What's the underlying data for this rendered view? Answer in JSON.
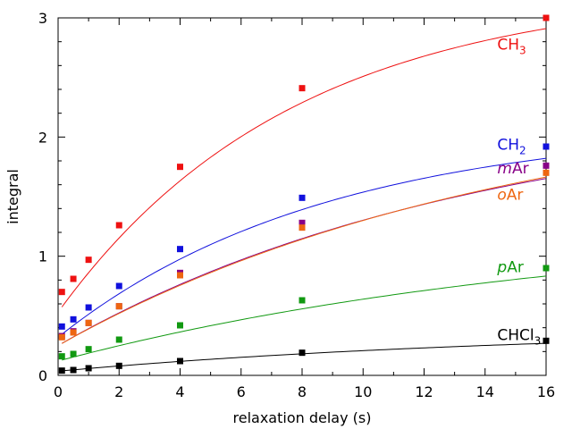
{
  "chart_data": {
    "type": "scatter",
    "title": "",
    "xlabel": "relaxation delay (s)",
    "ylabel": "integral",
    "xlim": [
      0,
      16
    ],
    "ylim": [
      0,
      3
    ],
    "x_ticks": [
      "0",
      "2",
      "4",
      "6",
      "8",
      "10",
      "12",
      "14",
      "16"
    ],
    "y_ticks": [
      "0",
      "1",
      "2",
      "3"
    ],
    "x": [
      0.125,
      0.5,
      1,
      2,
      4,
      8,
      16
    ],
    "series": [
      {
        "name": "CH3",
        "label_main": "CH",
        "label_sub": "3",
        "italic": false,
        "color": "#ee1111",
        "values": [
          0.7,
          0.81,
          0.97,
          1.26,
          1.75,
          2.41,
          3.0
        ],
        "fit": [
          0.53,
          3.25,
          0.13
        ]
      },
      {
        "name": "CH2",
        "label_main": "CH",
        "label_sub": "2",
        "italic": false,
        "color": "#1111dd",
        "values": [
          0.41,
          0.47,
          0.57,
          0.75,
          1.06,
          1.49,
          1.92
        ],
        "fit": [
          0.32,
          2.11,
          0.114
        ]
      },
      {
        "name": "mAr",
        "label_main": "m",
        "label_tail": "Ar",
        "italic": true,
        "color": "#880088",
        "values": [
          0.33,
          0.37,
          0.44,
          0.58,
          0.86,
          1.28,
          1.76
        ],
        "fit": [
          0.25,
          2.3,
          0.072
        ]
      },
      {
        "name": "oAr",
        "label_main": "o",
        "label_tail": "Ar",
        "italic": true,
        "color": "#ee6611",
        "values": [
          0.32,
          0.36,
          0.44,
          0.58,
          0.84,
          1.24,
          1.7
        ],
        "fit": [
          0.25,
          2.4,
          0.067
        ]
      },
      {
        "name": "pAr",
        "label_main": "p",
        "label_tail": "Ar",
        "italic": true,
        "color": "#119911",
        "values": [
          0.16,
          0.18,
          0.22,
          0.3,
          0.42,
          0.63,
          0.9
        ],
        "fit": [
          0.12,
          1.3,
          0.058
        ]
      },
      {
        "name": "CHCl3",
        "label_main": "CHCl",
        "label_sub": "3",
        "italic": false,
        "color": "#000000",
        "values": [
          0.04,
          0.045,
          0.06,
          0.08,
          0.12,
          0.19,
          0.29
        ],
        "fit": [
          0.035,
          0.4,
          0.064
        ]
      }
    ]
  }
}
